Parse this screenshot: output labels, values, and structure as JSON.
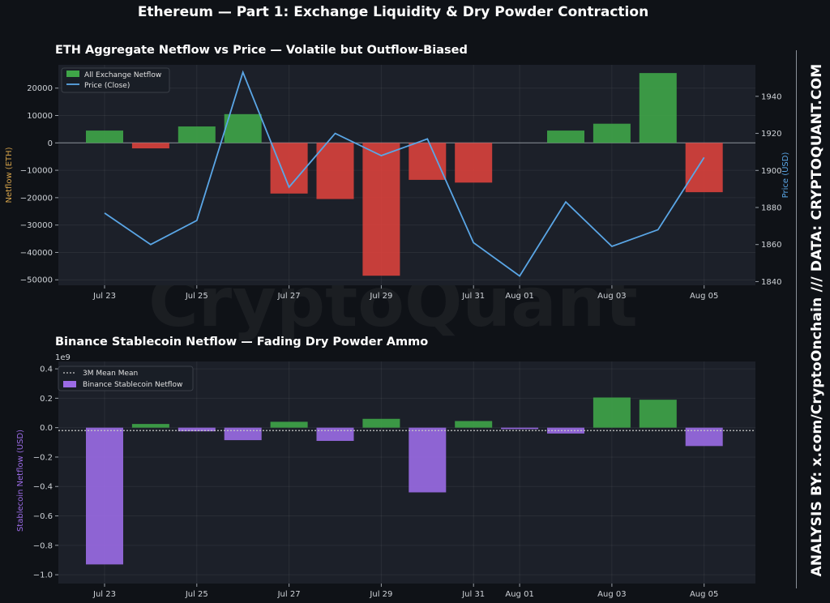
{
  "figure": {
    "title": "Ethereum — Part 1: Exchange Liquidity & Dry Powder Contraction",
    "watermark": "CryptoQuant",
    "sidebar_text": "ANALYSIS BY: x.com/CryptoOnchain   ///   DATA: CRYPTOQUANT.COM"
  },
  "colors": {
    "background": "#0f1217",
    "panel": "#1c2029",
    "positive": "#3fa548",
    "negative": "#d9413c",
    "price_line": "#5aa6e6",
    "stablecoin": "#9b6be6",
    "mean_line": "#c8c8c8",
    "ylabel_top": "#d4a24a"
  },
  "chart_data": [
    {
      "type": "bar",
      "title": "ETH Aggregate Netflow vs Price — Volatile but Outflow-Biased",
      "ylabel": "Netflow (ETH)",
      "ylabel_right": "Price (USD)",
      "ylim": [
        -52000,
        28500
      ],
      "ylim_right": [
        1838,
        1957
      ],
      "yticks": [
        "20000",
        "10000",
        "0",
        "−10000",
        "−20000",
        "−30000",
        "−40000",
        "−50000"
      ],
      "yticks_values": [
        20000,
        10000,
        0,
        -10000,
        -20000,
        -30000,
        -40000,
        -50000
      ],
      "yticks_right": [
        "1940",
        "1920",
        "1900",
        "1880",
        "1860",
        "1840"
      ],
      "yticks_right_values": [
        1940,
        1920,
        1900,
        1880,
        1860,
        1840
      ],
      "x_ticks": [
        "Jul 23",
        "Jul 25",
        "Jul 27",
        "Jul 29",
        "Jul 31",
        "Aug 01",
        "Aug 03",
        "Aug 05"
      ],
      "x_tick_index": [
        0,
        2,
        4,
        6,
        8,
        9,
        11,
        13
      ],
      "categories": [
        "Jul 23",
        "Jul 24",
        "Jul 25",
        "Jul 26",
        "Jul 27",
        "Jul 28",
        "Jul 29",
        "Jul 30",
        "Jul 31",
        "Aug 01",
        "Aug 02",
        "Aug 03",
        "Aug 04",
        "Aug 05"
      ],
      "legend_position": "upper-left",
      "series": [
        {
          "name": "All Exchange Netflow",
          "kind": "bar",
          "values": [
            4500,
            -2000,
            6000,
            10500,
            -18500,
            -20500,
            -48500,
            -13500,
            -14500,
            0,
            4500,
            7000,
            25500,
            -18000
          ]
        },
        {
          "name": "Price (Close)",
          "kind": "line",
          "axis": "right",
          "values": [
            1877,
            1860,
            1873,
            1953,
            1891,
            1920,
            1908,
            1917,
            1861,
            1843,
            1883,
            1859,
            1868,
            1907
          ]
        }
      ]
    },
    {
      "type": "bar",
      "title": "Binance Stablecoin Netflow — Fading Dry Powder Ammo",
      "ylabel": "Stablecoin Netflow (USD)",
      "offset_label": "1e9",
      "ylim": [
        -1.06,
        0.45
      ],
      "yticks": [
        "0.4",
        "0.2",
        "0.0",
        "−0.2",
        "−0.4",
        "−0.6",
        "−0.8",
        "−1.0"
      ],
      "yticks_values": [
        0.4,
        0.2,
        0.0,
        -0.2,
        -0.4,
        -0.6,
        -0.8,
        -1.0
      ],
      "x_ticks": [
        "Jul 23",
        "Jul 25",
        "Jul 27",
        "Jul 29",
        "Jul 31",
        "Aug 01",
        "Aug 03",
        "Aug 05"
      ],
      "x_tick_index": [
        0,
        2,
        4,
        6,
        8,
        9,
        11,
        13
      ],
      "mean_value": -0.02,
      "legend_position": "upper-left",
      "series": [
        {
          "name": "3M Mean Mean",
          "kind": "hline"
        },
        {
          "name": "Binance Stablecoin Netflow",
          "kind": "bar",
          "values": [
            -0.93,
            0.025,
            -0.025,
            -0.085,
            0.04,
            -0.09,
            0.06,
            -0.44,
            0.045,
            -0.01,
            -0.04,
            0.205,
            0.19,
            -0.125
          ]
        }
      ]
    }
  ]
}
